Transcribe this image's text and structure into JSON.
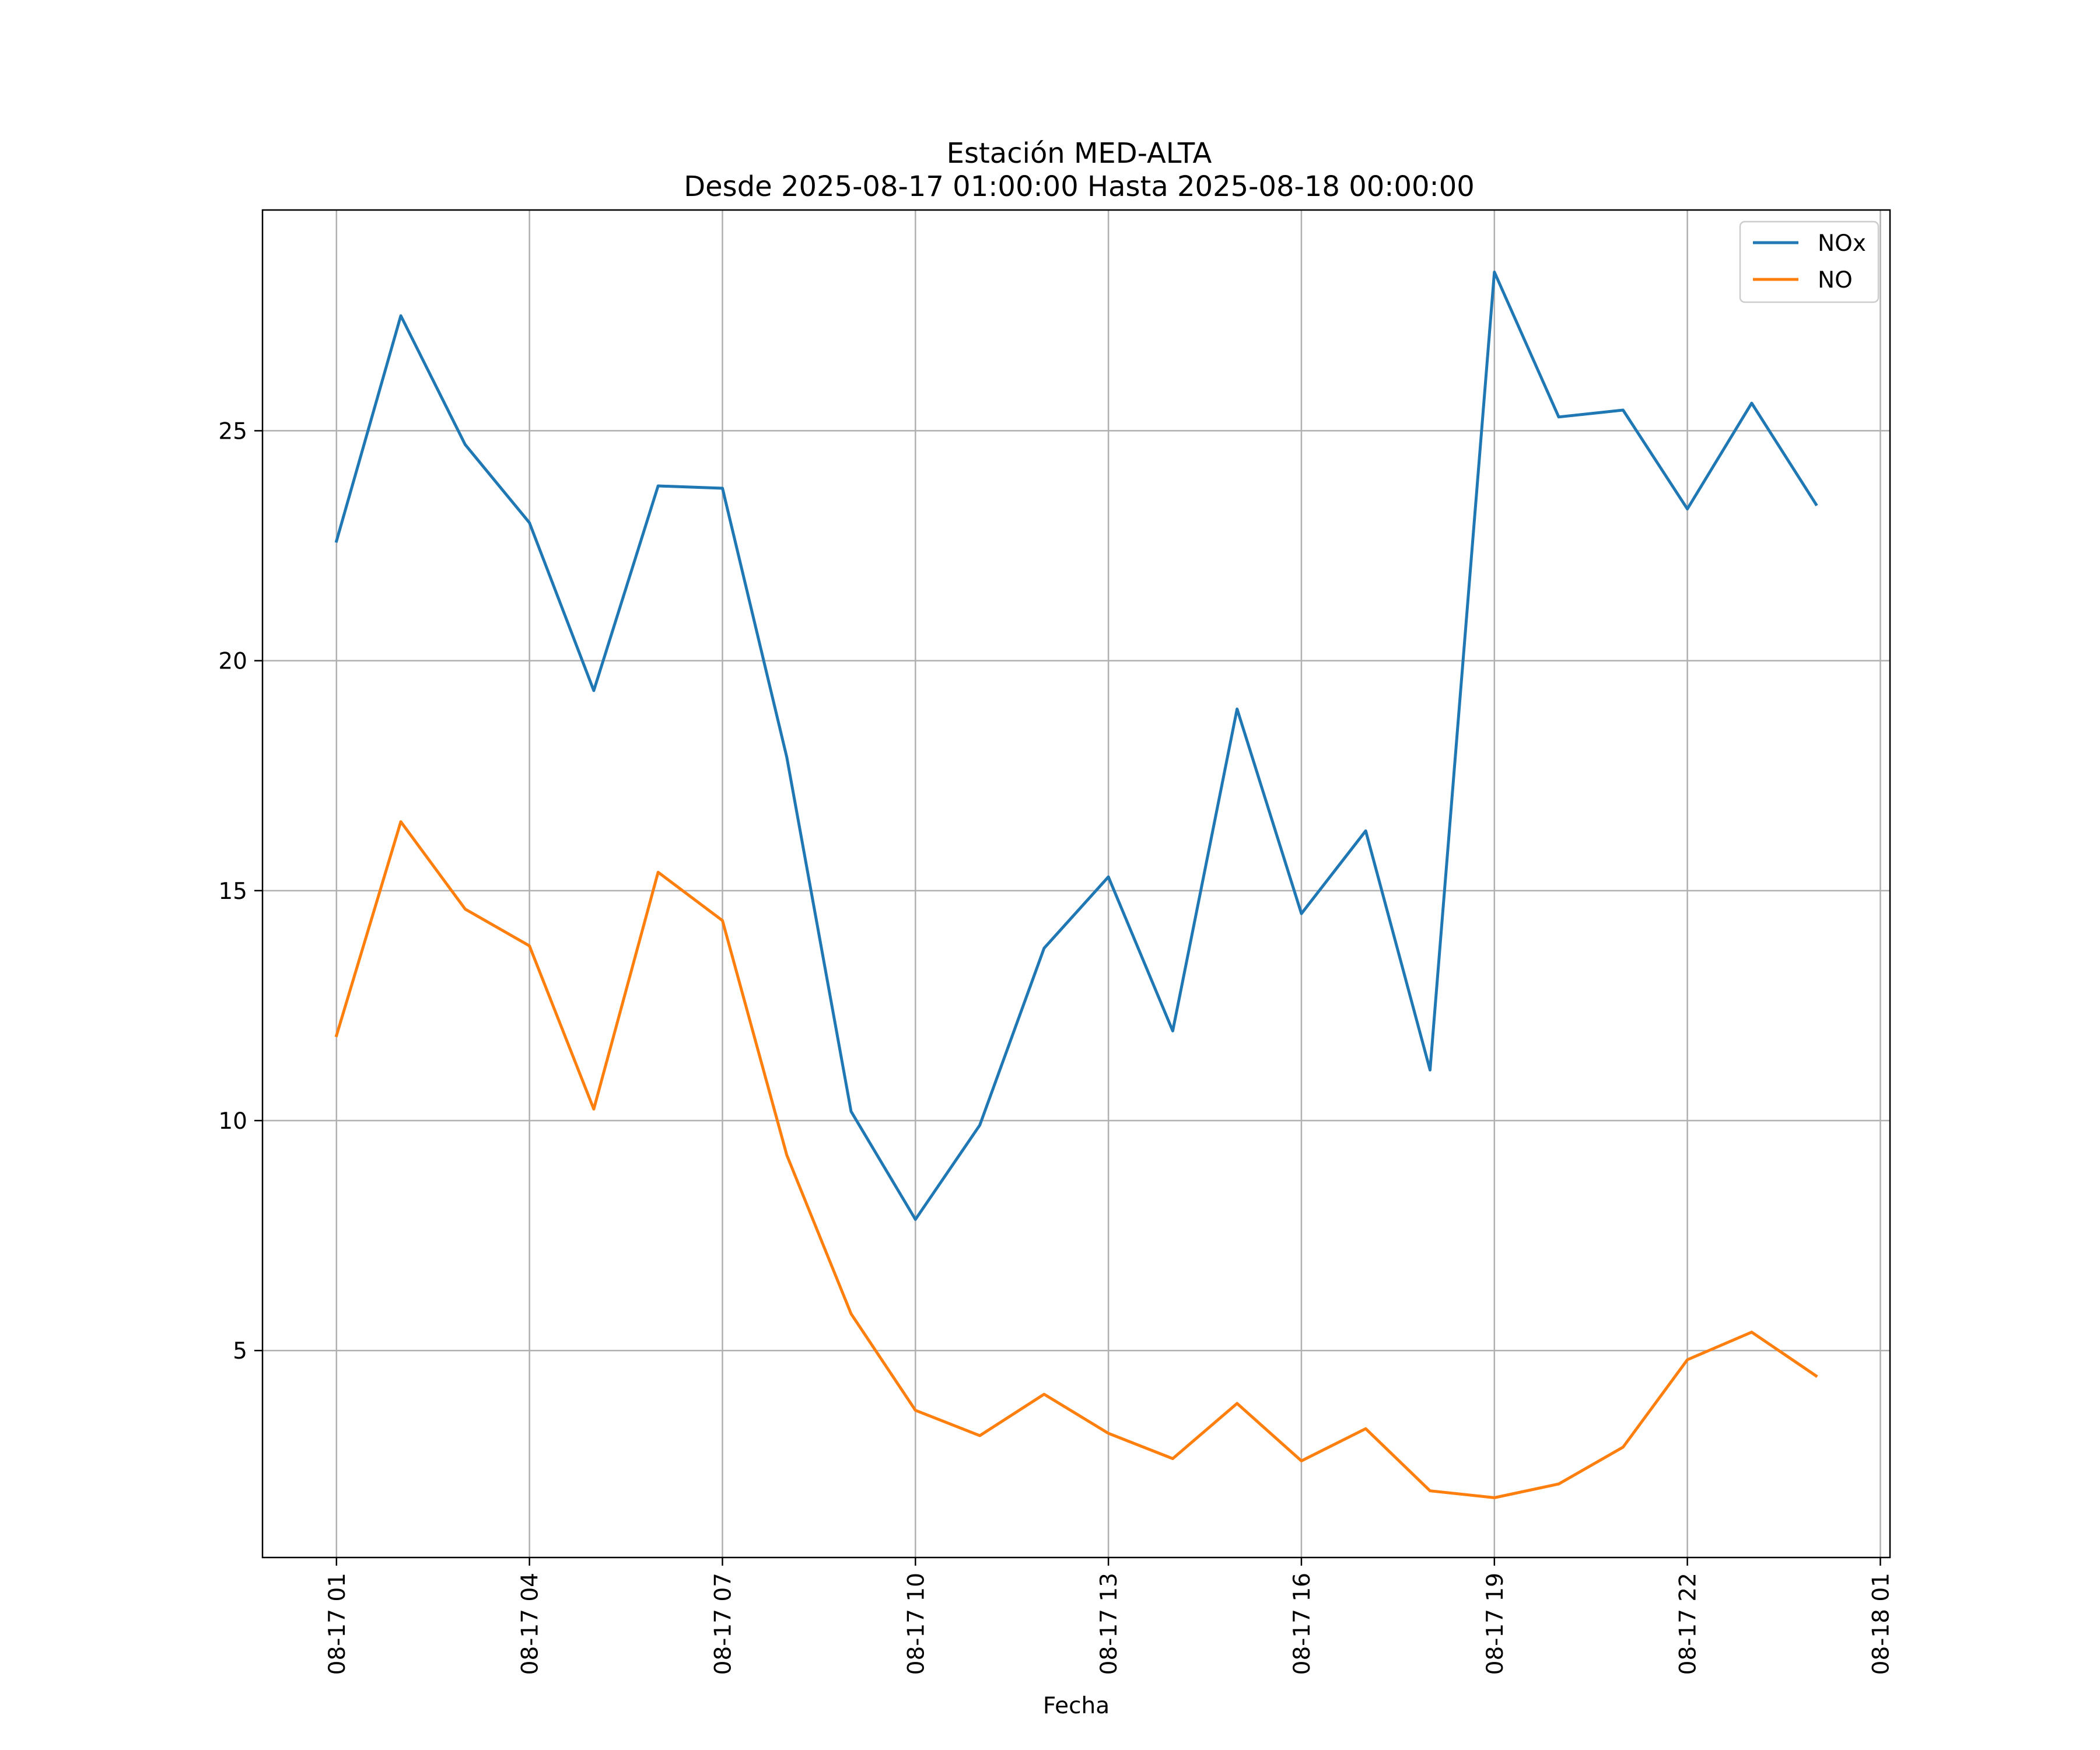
{
  "chart_data": {
    "type": "line",
    "title": "Estación MED-ALTA",
    "subtitle": "Desde 2025-08-17 01:00:00 Hasta 2025-08-18 00:00:00",
    "xlabel": "Fecha",
    "ylabel": "",
    "x": [
      "2025-08-17 01:00",
      "2025-08-17 02:00",
      "2025-08-17 03:00",
      "2025-08-17 04:00",
      "2025-08-17 05:00",
      "2025-08-17 06:00",
      "2025-08-17 07:00",
      "2025-08-17 08:00",
      "2025-08-17 09:00",
      "2025-08-17 10:00",
      "2025-08-17 11:00",
      "2025-08-17 12:00",
      "2025-08-17 13:00",
      "2025-08-17 14:00",
      "2025-08-17 15:00",
      "2025-08-17 16:00",
      "2025-08-17 17:00",
      "2025-08-17 18:00",
      "2025-08-17 19:00",
      "2025-08-17 20:00",
      "2025-08-17 21:00",
      "2025-08-17 22:00",
      "2025-08-17 23:00",
      "2025-08-18 00:00"
    ],
    "xlim": [
      "2025-08-16 23:51",
      "2025-08-18 01:09"
    ],
    "xticks": [
      "2025-08-17 01:00",
      "2025-08-17 04:00",
      "2025-08-17 07:00",
      "2025-08-17 10:00",
      "2025-08-17 13:00",
      "2025-08-17 16:00",
      "2025-08-17 19:00",
      "2025-08-17 22:00",
      "2025-08-18 01:00"
    ],
    "xtick_labels": [
      "08-17 01",
      "08-17 04",
      "08-17 07",
      "08-17 10",
      "08-17 13",
      "08-17 16",
      "08-17 19",
      "08-17 22",
      "08-18 01"
    ],
    "yticks": [
      5,
      10,
      15,
      20,
      25
    ],
    "ytick_labels": [
      "5",
      "10",
      "15",
      "20",
      "25"
    ],
    "ylim": [
      0.5,
      29.8
    ],
    "grid": true,
    "legend_position": "top-right",
    "series": [
      {
        "name": "NOx",
        "color": "#1f77b4",
        "values": [
          22.6,
          27.5,
          24.7,
          23.0,
          19.35,
          23.8,
          23.75,
          17.9,
          10.2,
          7.85,
          9.9,
          13.75,
          15.3,
          11.95,
          18.95,
          14.5,
          16.3,
          11.1,
          28.45,
          25.3,
          25.45,
          23.3,
          25.6,
          23.4
        ]
      },
      {
        "name": "NO",
        "color": "#ff7f0e",
        "values": [
          11.85,
          16.5,
          14.6,
          13.8,
          10.25,
          15.4,
          14.35,
          9.25,
          5.8,
          3.7,
          3.15,
          4.05,
          3.2,
          2.65,
          3.85,
          2.6,
          3.3,
          1.95,
          1.8,
          2.1,
          2.9,
          4.8,
          5.4,
          4.45
        ]
      }
    ]
  }
}
